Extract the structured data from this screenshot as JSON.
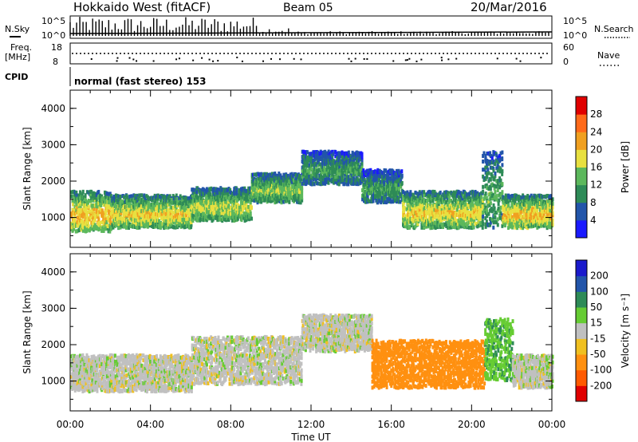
{
  "header": {
    "title": "Hokkaido West (fitACF)",
    "beam": "Beam 05",
    "date": "20/Mar/2016"
  },
  "top_strip": {
    "nsky_label": "N.Sky",
    "nsearch_label": "N.Search",
    "noise_tick_high": "10^5",
    "noise_tick_low": "10^0",
    "freq_label_1": "Freq.",
    "freq_label_2": "[MHz]",
    "freq_tick_high": "18",
    "freq_tick_low": "8",
    "nave_label": "Nave",
    "nave_tick_high": "60",
    "nave_tick_low": "0",
    "cpid_label": "CPID",
    "cpid_text": "normal (fast stereo) 153"
  },
  "chart_data": [
    {
      "type": "heatmap",
      "panel": "power",
      "ylabel": "Slant Range [km]",
      "ylim": [
        180,
        4500
      ],
      "yticks": [
        "1000",
        "2000",
        "3000",
        "4000"
      ],
      "xlim": [
        0,
        24
      ],
      "colorbar": {
        "label": "Power [dB]",
        "ticks": [
          "4",
          "8",
          "12",
          "16",
          "20",
          "24",
          "28"
        ],
        "colors": [
          "#1a1aff",
          "#2255aa",
          "#2e8b57",
          "#5cb85c",
          "#e8e040",
          "#f0a020",
          "#ff6a1a",
          "#e00000"
        ]
      },
      "echo_bands": [
        {
          "t0": 0.0,
          "t1": 2.0,
          "r0": 600,
          "r1": 1700,
          "level": 22
        },
        {
          "t0": 2.0,
          "t1": 6.0,
          "r0": 700,
          "r1": 1600,
          "level": 20
        },
        {
          "t0": 6.0,
          "t1": 9.0,
          "r0": 900,
          "r1": 1800,
          "level": 18
        },
        {
          "t0": 9.0,
          "t1": 11.5,
          "r0": 1400,
          "r1": 2200,
          "level": 16
        },
        {
          "t0": 11.5,
          "t1": 14.5,
          "r0": 1900,
          "r1": 2800,
          "level": 12
        },
        {
          "t0": 14.5,
          "t1": 16.5,
          "r0": 1400,
          "r1": 2300,
          "level": 12
        },
        {
          "t0": 16.5,
          "t1": 20.5,
          "r0": 700,
          "r1": 1700,
          "level": 20
        },
        {
          "t0": 20.5,
          "t1": 21.5,
          "r0": 700,
          "r1": 2800,
          "level": 14
        },
        {
          "t0": 21.5,
          "t1": 24.0,
          "r0": 700,
          "r1": 1600,
          "level": 22
        }
      ]
    },
    {
      "type": "heatmap",
      "panel": "velocity",
      "ylabel": "Slant Range [km]",
      "ylim": [
        180,
        4500
      ],
      "yticks": [
        "1000",
        "2000",
        "3000",
        "4000"
      ],
      "xlim": [
        0,
        24
      ],
      "xlabel": "Time UT",
      "xticks": [
        "00:00",
        "04:00",
        "08:00",
        "12:00",
        "16:00",
        "20:00",
        "00:00"
      ],
      "colorbar": {
        "label": "Velocity [m s⁻¹]",
        "ticks": [
          "200",
          "100",
          "50",
          "15",
          "-15",
          "-50",
          "-100",
          "-200"
        ],
        "colors": [
          "#1a1acc",
          "#2255aa",
          "#2e8b57",
          "#66cc33",
          "#c0c0c0",
          "#f0c020",
          "#ff9010",
          "#ff5a00",
          "#e00000"
        ]
      },
      "echo_bands": [
        {
          "t0": 0.0,
          "t1": 6.0,
          "r0": 700,
          "r1": 1700,
          "vel": 0
        },
        {
          "t0": 6.0,
          "t1": 11.5,
          "r0": 900,
          "r1": 2200,
          "vel": 0
        },
        {
          "t0": 11.5,
          "t1": 15.0,
          "r0": 1800,
          "r1": 2800,
          "vel": 0
        },
        {
          "t0": 15.0,
          "t1": 20.6,
          "r0": 800,
          "r1": 2100,
          "vel": -80
        },
        {
          "t0": 20.6,
          "t1": 22.0,
          "r0": 1000,
          "r1": 2700,
          "vel": 40
        },
        {
          "t0": 22.0,
          "t1": 24.0,
          "r0": 800,
          "r1": 1700,
          "vel": 0
        }
      ]
    }
  ]
}
